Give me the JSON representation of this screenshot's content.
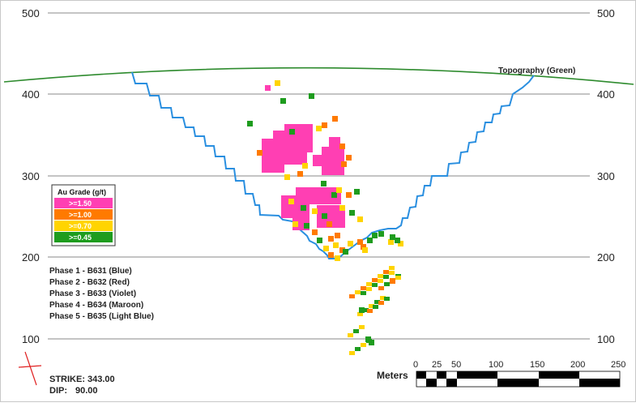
{
  "y_axis": {
    "ticks": [
      "500",
      "400",
      "300",
      "200",
      "100"
    ]
  },
  "topography_label": "Topography (Green)",
  "legend": {
    "title": "Au Grade (g/t)",
    "items": [
      {
        "label": ">=1.50",
        "color": "#ff3fb3"
      },
      {
        "label": ">=1.00",
        "color": "#ff7a00"
      },
      {
        "label": ">=0.70",
        "color": "#ffd400"
      },
      {
        "label": ">=0.45",
        "color": "#1e9c1e"
      }
    ]
  },
  "phases": [
    "Phase 1 - B631 (Blue)",
    "Phase 2 - B632 (Red)",
    "Phase 3 - B633 (Violet)",
    "Phase 4 - B634 (Maroon)",
    "Phase 5 - B635 (Light Blue)"
  ],
  "strike": {
    "label": "STRIKE:",
    "value": "343.00"
  },
  "dip": {
    "label": "DIP:",
    "value": "90.00"
  },
  "scale_bar": {
    "title": "Meters",
    "ticks": [
      "0",
      "25",
      "50",
      "100",
      "150",
      "200",
      "250"
    ]
  },
  "colors": {
    "topography": "#2e8b2e",
    "pit": "#2a8fe0",
    "grid": "#8a8a8a"
  }
}
